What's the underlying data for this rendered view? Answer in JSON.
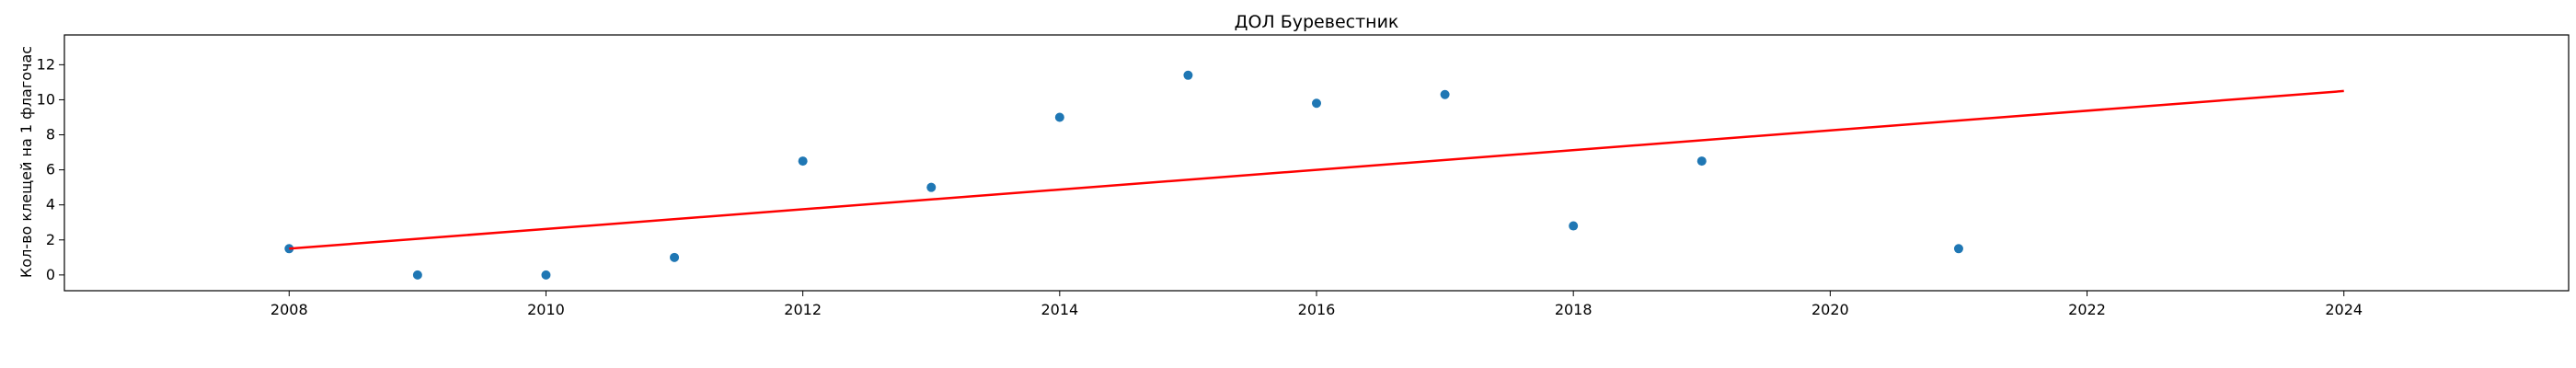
{
  "chart_data": {
    "type": "scatter",
    "title": "ДОЛ Буревестник",
    "xlabel": "",
    "ylabel": "Кол-во клещей на 1 флагочас",
    "xlim": [
      2006.25,
      2025.75
    ],
    "ylim": [
      -0.9,
      13.7
    ],
    "x_ticks": [
      2008,
      2010,
      2012,
      2014,
      2016,
      2018,
      2020,
      2022,
      2024
    ],
    "y_ticks": [
      0,
      2,
      4,
      6,
      8,
      10,
      12
    ],
    "grid": false,
    "series": [
      {
        "kind": "scatter",
        "color": "#1f77b4",
        "points": [
          {
            "x": 2008,
            "y": 1.5
          },
          {
            "x": 2009,
            "y": 0.0
          },
          {
            "x": 2010,
            "y": 0.0
          },
          {
            "x": 2011,
            "y": 1.0
          },
          {
            "x": 2012,
            "y": 6.5
          },
          {
            "x": 2013,
            "y": 5.0
          },
          {
            "x": 2014,
            "y": 9.0
          },
          {
            "x": 2015,
            "y": 11.4
          },
          {
            "x": 2016,
            "y": 9.8
          },
          {
            "x": 2017,
            "y": 10.3
          },
          {
            "x": 2018,
            "y": 2.8
          },
          {
            "x": 2019,
            "y": 6.5
          },
          {
            "x": 2021,
            "y": 1.5
          }
        ]
      },
      {
        "kind": "line",
        "color": "#ff0000",
        "points": [
          {
            "x": 2008,
            "y": 1.5
          },
          {
            "x": 2024,
            "y": 10.5
          }
        ]
      }
    ]
  }
}
